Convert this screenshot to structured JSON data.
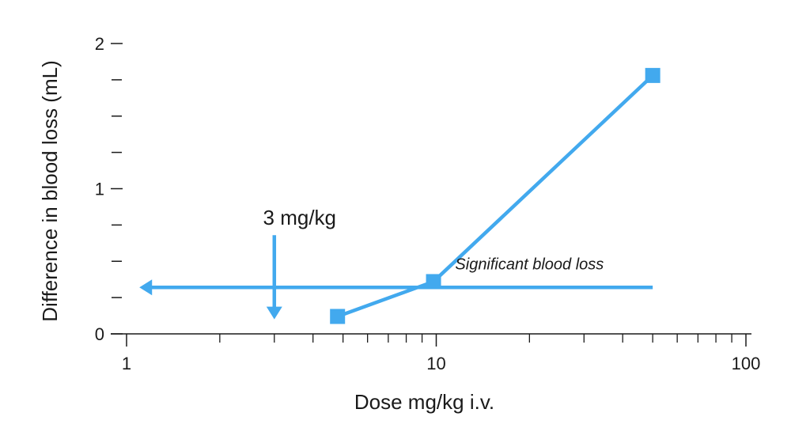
{
  "chart_data": {
    "type": "line",
    "xlabel": "Dose mg/kg i.v.",
    "ylabel": "Difference in blood loss (mL)",
    "x_scale": "log",
    "xlim": [
      1,
      100
    ],
    "ylim": [
      0,
      2
    ],
    "x_ticks_major": [
      1,
      10,
      100
    ],
    "x_tick_labels": [
      "1",
      "10",
      "100"
    ],
    "x_ticks_minor": [
      2,
      3,
      4,
      5,
      6,
      7,
      8,
      9,
      20,
      30,
      40,
      50,
      60,
      70,
      80,
      90
    ],
    "y_ticks_major": [
      0,
      1,
      2
    ],
    "y_tick_labels": [
      "0",
      "1",
      "2"
    ],
    "y_ticks_minor": [
      0.25,
      0.5,
      0.75,
      1.25,
      1.5,
      1.75
    ],
    "series": [
      {
        "x": [
          4.8,
          9.8,
          50
        ],
        "y": [
          0.12,
          0.36,
          1.78
        ],
        "marker": "square"
      }
    ],
    "threshold": {
      "y": 0.32,
      "x_from": 50,
      "x_to": 1.1,
      "label": "Significant blood loss"
    },
    "arrow_annotation": {
      "x": 3,
      "label": "3 mg/kg",
      "y_from": 0.68,
      "y_to": 0.1
    },
    "grid": false,
    "colors": {
      "series": "#42a9ee",
      "axis": "#1a1a1a"
    }
  }
}
